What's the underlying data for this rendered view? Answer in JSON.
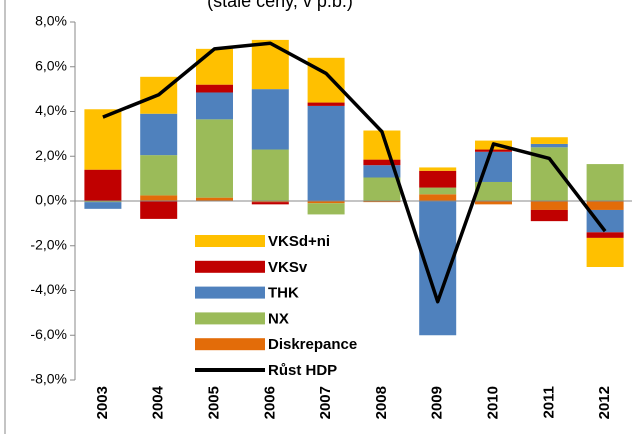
{
  "chart_data": {
    "type": "stacked-bar-line",
    "subtitle": "(stálé ceny, v p.b.)",
    "categories": [
      "2003",
      "2004",
      "2005",
      "2006",
      "2007",
      "2008",
      "2009",
      "2010",
      "2011",
      "2012"
    ],
    "series": [
      {
        "name": "Diskrepance",
        "color": "#e36c09",
        "values": [
          0,
          0.25,
          0.15,
          -0.05,
          -0.1,
          -0.05,
          0.3,
          -0.15,
          -0.4,
          -0.4
        ]
      },
      {
        "name": "NX",
        "color": "#9bbb59",
        "values": [
          -0.05,
          1.8,
          3.5,
          2.3,
          -0.5,
          1.05,
          0.3,
          0.85,
          2.4,
          1.65
        ]
      },
      {
        "name": "THK",
        "color": "#4f81bd",
        "values": [
          -0.3,
          1.85,
          1.2,
          2.7,
          4.25,
          0.55,
          -6.0,
          1.35,
          0.15,
          -1.0
        ]
      },
      {
        "name": "VKSv",
        "color": "#c00000",
        "values": [
          1.4,
          -0.8,
          0.35,
          -0.1,
          0.15,
          0.25,
          0.75,
          0.1,
          -0.5,
          -0.25
        ]
      },
      {
        "name": "VKSd+ni",
        "color": "#ffc000",
        "values": [
          2.7,
          1.65,
          1.6,
          2.2,
          2.0,
          1.3,
          0.15,
          0.4,
          0.3,
          -1.3
        ]
      }
    ],
    "line": {
      "name": "Růst HDP",
      "color": "#000000",
      "values": [
        3.75,
        4.75,
        6.8,
        7.05,
        5.7,
        3.1,
        -4.5,
        2.55,
        1.9,
        -1.35
      ]
    },
    "ylim": [
      -8,
      8
    ],
    "yticks": [
      {
        "value": -8,
        "label": "-8,0%"
      },
      {
        "value": -6,
        "label": "-6,0%"
      },
      {
        "value": -4,
        "label": "-4,0%"
      },
      {
        "value": -2,
        "label": "-2,0%"
      },
      {
        "value": 0,
        "label": "0,0%"
      },
      {
        "value": 2,
        "label": "2,0%"
      },
      {
        "value": 4,
        "label": "4,0%"
      },
      {
        "value": 6,
        "label": "6,0%"
      },
      {
        "value": 8,
        "label": "8,0%"
      }
    ],
    "legend": "inside-lower-left"
  }
}
